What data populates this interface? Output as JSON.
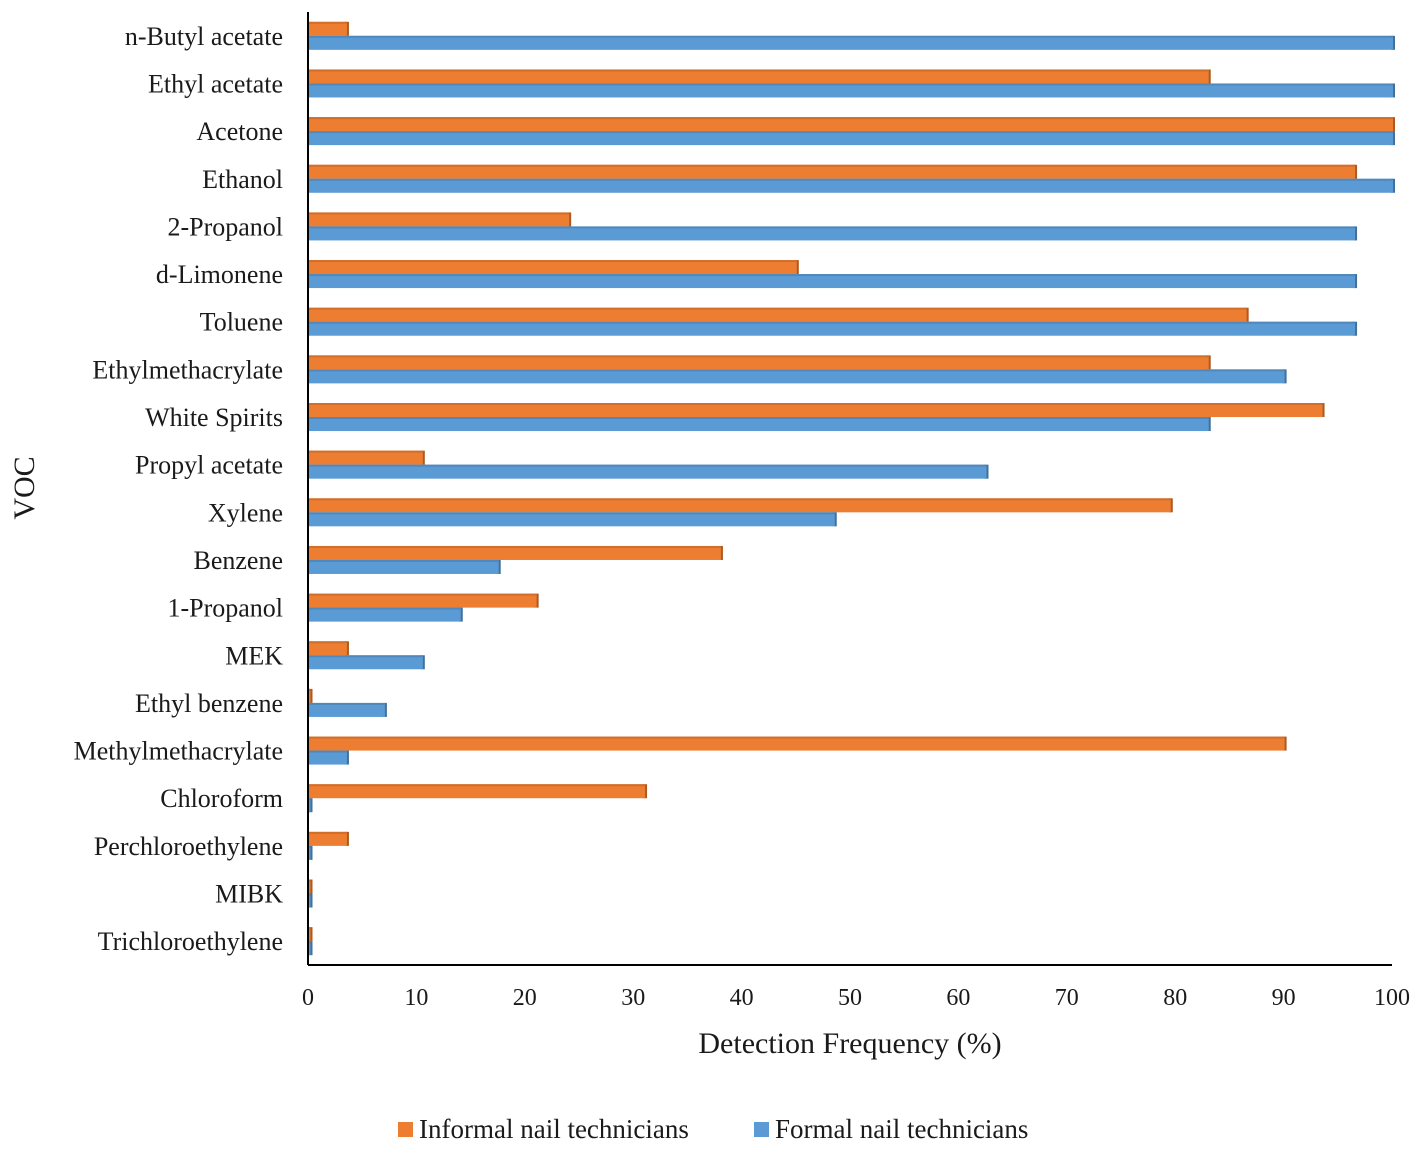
{
  "chart_data": {
    "type": "bar",
    "orientation": "horizontal",
    "title": "",
    "xlabel": "Detection Frequency (%)",
    "ylabel": "VOC",
    "xlim": [
      0,
      100
    ],
    "xticks": [
      "0",
      "10",
      "20",
      "30",
      "40",
      "50",
      "60",
      "70",
      "80",
      "90",
      "100"
    ],
    "grid": false,
    "legend_position": "bottom",
    "categories": [
      "n-Butyl acetate",
      "Ethyl acetate",
      "Acetone",
      "Ethanol",
      "2-Propanol",
      "d-Limonene",
      "Toluene",
      "Ethylmethacrylate",
      "White Spirits",
      "Propyl acetate",
      "Xylene",
      "Benzene",
      "1-Propanol",
      "MEK",
      "Ethyl benzene",
      "Methylmethacrylate",
      "Chloroform",
      "Perchloroethylene",
      "MIBK",
      "Trichloroethylene"
    ],
    "series": [
      {
        "name": "Informal nail technicians",
        "color": "#ED7D31",
        "values": [
          3.5,
          83,
          100,
          96.5,
          24,
          45,
          86.5,
          83,
          93.5,
          10.5,
          79.5,
          38,
          21,
          3.5,
          0,
          90,
          31,
          3.5,
          0,
          0
        ]
      },
      {
        "name": "Formal nail technicians",
        "color": "#5B9BD5",
        "values": [
          100,
          100,
          100,
          100,
          96.5,
          96.5,
          96.5,
          90,
          83,
          62.5,
          48.5,
          17.5,
          14,
          10.5,
          7,
          3.5,
          0,
          0,
          0,
          0
        ]
      }
    ]
  }
}
